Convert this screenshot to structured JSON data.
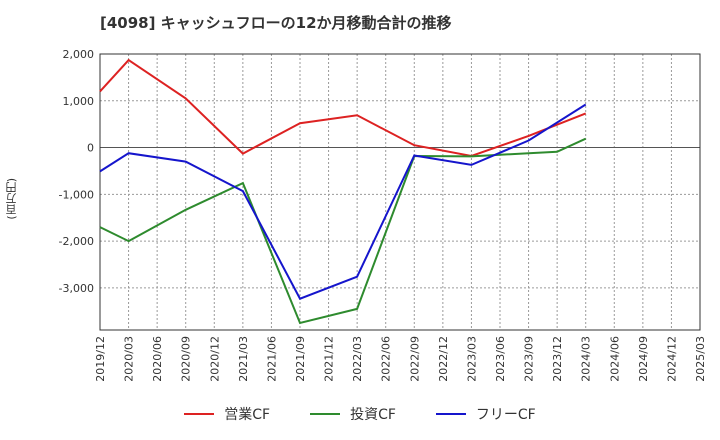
{
  "chart_data": {
    "type": "line",
    "title": "[4098]  キャッシュフローの12か月移動合計の推移",
    "ylabel": "(百万円)",
    "xlabel": "",
    "ylim": [
      -3900,
      2000
    ],
    "yticks": [
      2000,
      1000,
      0,
      -1000,
      -2000,
      -3000
    ],
    "ytick_labels": [
      "2,000",
      "1,000",
      "0",
      "-1,000",
      "-2,000",
      "-3,000"
    ],
    "xtick_labels": [
      "2019/12",
      "2020/03",
      "2020/06",
      "2020/09",
      "2020/12",
      "2021/03",
      "2021/06",
      "2021/09",
      "2021/12",
      "2022/03",
      "2022/06",
      "2022/09",
      "2022/12",
      "2023/03",
      "2023/06",
      "2023/09",
      "2023/12",
      "2024/03",
      "2024/06",
      "2024/09",
      "2024/12",
      "2025/03"
    ],
    "grid": true,
    "legend_position": "bottom",
    "series": [
      {
        "name": "営業CF",
        "color": "#dd2222",
        "points": [
          [
            0,
            1200
          ],
          [
            1,
            1870
          ],
          [
            3,
            1050
          ],
          [
            5,
            -130
          ],
          [
            7,
            520
          ],
          [
            9,
            690
          ],
          [
            11,
            50
          ],
          [
            13,
            -180
          ],
          [
            15,
            250
          ],
          [
            17,
            730
          ]
        ]
      },
      {
        "name": "投資CF",
        "color": "#2e8b2e",
        "points": [
          [
            0,
            -1700
          ],
          [
            1,
            -2000
          ],
          [
            3,
            -1330
          ],
          [
            5,
            -760
          ],
          [
            7,
            -3750
          ],
          [
            9,
            -3450
          ],
          [
            11,
            -180
          ],
          [
            13,
            -190
          ],
          [
            15,
            -120
          ],
          [
            16,
            -90
          ],
          [
            17,
            190
          ]
        ]
      },
      {
        "name": "フリーCF",
        "color": "#1515cc",
        "points": [
          [
            0,
            -510
          ],
          [
            1,
            -120
          ],
          [
            3,
            -300
          ],
          [
            5,
            -930
          ],
          [
            7,
            -3230
          ],
          [
            9,
            -2760
          ],
          [
            11,
            -170
          ],
          [
            13,
            -370
          ],
          [
            15,
            150
          ],
          [
            17,
            920
          ]
        ]
      }
    ]
  }
}
